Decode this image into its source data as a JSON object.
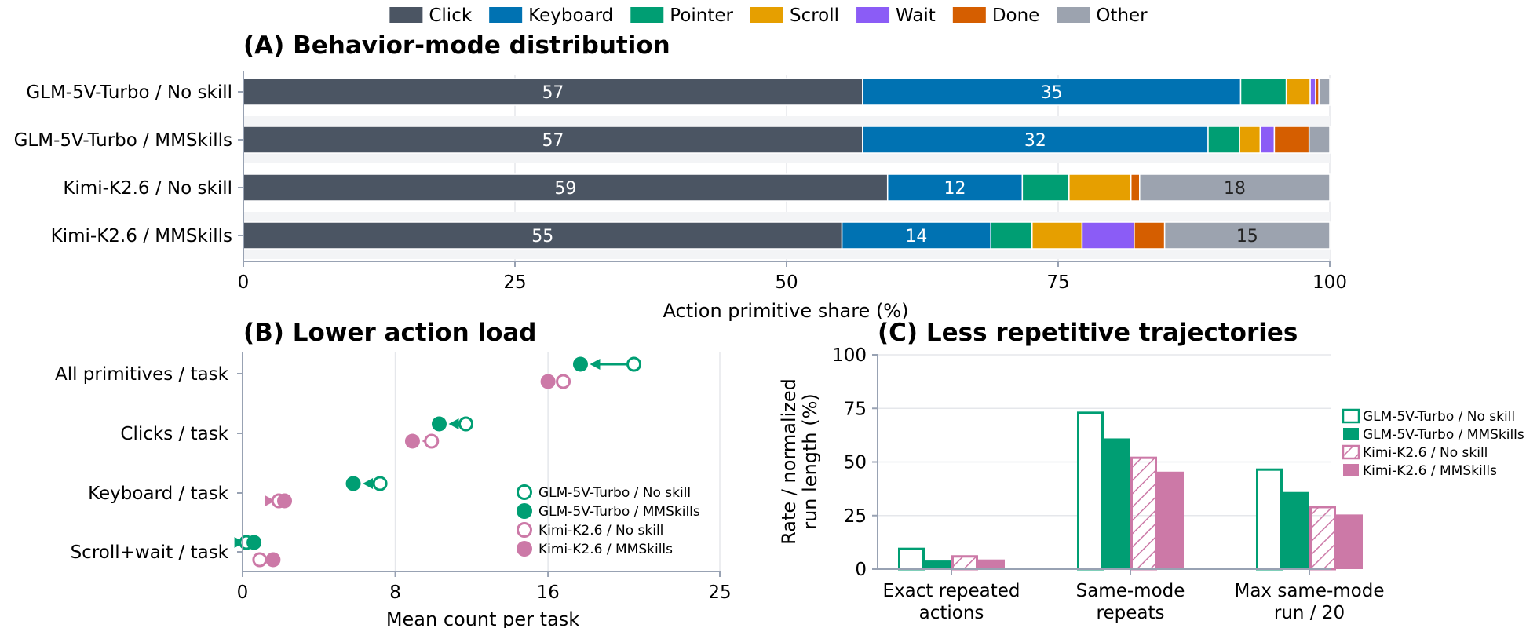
{
  "legend": {
    "items": [
      {
        "label": "Click",
        "color": "#4b5563"
      },
      {
        "label": "Keyboard",
        "color": "#0072b2"
      },
      {
        "label": "Pointer",
        "color": "#009e73"
      },
      {
        "label": "Scroll",
        "color": "#e69f00"
      },
      {
        "label": "Wait",
        "color": "#8b5cf6"
      },
      {
        "label": "Done",
        "color": "#d55e00"
      },
      {
        "label": "Other",
        "color": "#9ca3af"
      }
    ]
  },
  "chart_data": [
    {
      "type": "bar",
      "orientation": "horizontal",
      "stacked": true,
      "title": "(A) Behavior-mode distribution",
      "xlabel": "Action primitive share (%)",
      "xlim": [
        0,
        100
      ],
      "xticks": [
        0,
        25,
        50,
        75,
        100
      ],
      "grid": "vertical",
      "categories": [
        "GLM-5V-Turbo / No skill",
        "GLM-5V-Turbo / MMSkills",
        "Kimi-K2.6 / No skill",
        "Kimi-K2.6 / MMSkills"
      ],
      "series": [
        {
          "name": "Click",
          "values": [
            57,
            57,
            59.3,
            55.1
          ],
          "labels": [
            "57",
            "57",
            "59",
            "55"
          ]
        },
        {
          "name": "Keyboard",
          "values": [
            34.8,
            31.8,
            12.4,
            13.7
          ],
          "labels": [
            "35",
            "32",
            "12",
            "14"
          ]
        },
        {
          "name": "Pointer",
          "values": [
            4.2,
            2.9,
            4.3,
            3.8
          ],
          "labels": [
            "",
            "",
            "",
            ""
          ]
        },
        {
          "name": "Scroll",
          "values": [
            2.2,
            1.9,
            5.7,
            4.6
          ],
          "labels": [
            "",
            "",
            "",
            ""
          ]
        },
        {
          "name": "Wait",
          "values": [
            0.5,
            1.3,
            0,
            4.8
          ],
          "labels": [
            "",
            "",
            "",
            ""
          ]
        },
        {
          "name": "Done",
          "values": [
            0.3,
            3.2,
            0.8,
            2.8
          ],
          "labels": [
            "",
            "",
            "",
            ""
          ]
        },
        {
          "name": "Other",
          "values": [
            1,
            1.9,
            17.5,
            15.2
          ],
          "labels": [
            "",
            "",
            "18",
            "15"
          ]
        }
      ]
    },
    {
      "type": "scatter",
      "subtype": "dumbbell",
      "title": "(B) Lower action load",
      "xlabel": "Mean count per task",
      "xlim": [
        0,
        25
      ],
      "xticks": [
        0,
        8,
        16,
        25
      ],
      "grid": "vertical",
      "categories": [
        "All primitives / task",
        "Clicks / task",
        "Keyboard / task",
        "Scroll+wait / task"
      ],
      "series": [
        {
          "name": "GLM-5V-Turbo / No skill",
          "color": "#009e73",
          "marker": "open-circle",
          "values": [
            20.5,
            11.7,
            7.2,
            0.2
          ]
        },
        {
          "name": "GLM-5V-Turbo / MMSkills",
          "color": "#009e73",
          "marker": "filled-circle",
          "values": [
            17.7,
            10.3,
            5.8,
            0.6
          ]
        },
        {
          "name": "Kimi-K2.6 / No skill",
          "color": "#cc79a7",
          "marker": "open-circle",
          "values": [
            16.8,
            9.9,
            1.9,
            0.9
          ]
        },
        {
          "name": "Kimi-K2.6 / MMSkills",
          "color": "#cc79a7",
          "marker": "filled-circle",
          "values": [
            16.0,
            8.9,
            2.2,
            1.6
          ]
        }
      ],
      "legend_position": "lower-right"
    },
    {
      "type": "bar",
      "orientation": "vertical",
      "grouped": true,
      "title": "(C) Less repetitive trajectories",
      "ylabel": "Rate / normalized run length (%)",
      "ylabel_lines": [
        "Rate / normalized",
        "run length (%)"
      ],
      "ylim": [
        0,
        100
      ],
      "yticks": [
        0,
        25,
        50,
        75,
        100
      ],
      "grid": "horizontal",
      "categories": [
        "Exact repeated actions",
        "Same-mode repeats",
        "Max same-mode run / 20"
      ],
      "category_lines": [
        [
          "Exact repeated",
          "actions"
        ],
        [
          "Same-mode",
          "repeats"
        ],
        [
          "Max same-mode",
          "run / 20"
        ]
      ],
      "series": [
        {
          "name": "GLM-5V-Turbo / No skill",
          "color": "#009e73",
          "style": "outline",
          "values": [
            10,
            73.5,
            47
          ]
        },
        {
          "name": "GLM-5V-Turbo / MMSkills",
          "color": "#009e73",
          "style": "filled",
          "values": [
            4,
            61,
            36
          ]
        },
        {
          "name": "Kimi-K2.6 / No skill",
          "color": "#cc79a7",
          "style": "hatched",
          "values": [
            6.5,
            52.5,
            29.5
          ]
        },
        {
          "name": "Kimi-K2.6 / MMSkills",
          "color": "#cc79a7",
          "style": "filled",
          "values": [
            4.5,
            45.5,
            25.5
          ]
        }
      ],
      "legend_position": "right"
    }
  ]
}
